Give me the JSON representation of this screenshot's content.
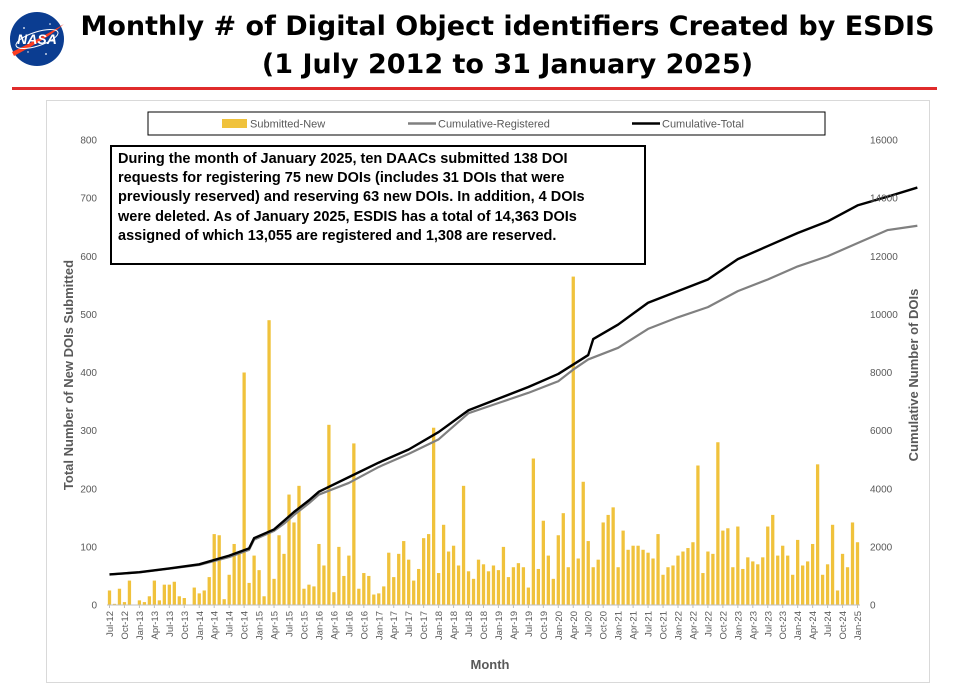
{
  "logo": {
    "text": "NASA",
    "colors": {
      "blue": "#0b3d91",
      "red": "#fc3d21"
    }
  },
  "header": {
    "title_line1": "Monthly # of Digital Object identifiers Created by ESDIS",
    "title_line2": "(1 July 2012 to 31 January 2025)",
    "rule_color": "#e02b2b"
  },
  "chart_data": {
    "type": "bar",
    "xlabel": "Month",
    "ylabel": "Total Number of New DOIs Submitted",
    "y2label": "Cumulative Number of DOIs",
    "ylim": [
      0,
      800
    ],
    "y2lim": [
      0,
      16000
    ],
    "yticks": [
      "0",
      "100",
      "200",
      "300",
      "400",
      "500",
      "600",
      "700",
      "800"
    ],
    "y2ticks": [
      "0",
      "2000",
      "4000",
      "6000",
      "8000",
      "10000",
      "12000",
      "14000",
      "16000"
    ],
    "xtick_labels": [
      "Jul-12",
      "Oct-12",
      "Jan-13",
      "Apr-13",
      "Jul-13",
      "Oct-13",
      "Jan-14",
      "Apr-14",
      "Jul-14",
      "Oct-14",
      "Jan-15",
      "Apr-15",
      "Jul-15",
      "Oct-15",
      "Jan-16",
      "Apr-16",
      "Jul-16",
      "Oct-16",
      "Jan-17",
      "Apr-17",
      "Jul-17",
      "Oct-17",
      "Jan-18",
      "Apr-18",
      "Jul-18",
      "Oct-18",
      "Jan-19",
      "Apr-19",
      "Jul-19",
      "Oct-19",
      "Jan-20",
      "Apr-20",
      "Jul-20",
      "Oct-20",
      "Jan-21",
      "Apr-21",
      "Jul-21",
      "Oct-21",
      "Jan-22",
      "Apr-22",
      "Jul-22",
      "Oct-22",
      "Jan-23",
      "Apr-23",
      "Jul-23",
      "Oct-23",
      "Jan-24",
      "Apr-24",
      "Jul-24",
      "Oct-24",
      "Jan-25"
    ],
    "grid": false,
    "legend_position": "top",
    "series": [
      {
        "name": "Submitted-New",
        "kind": "bar",
        "axis": "left",
        "color": "#f0c23c",
        "values": [
          25,
          2,
          28,
          5,
          42,
          0,
          8,
          5,
          15,
          42,
          8,
          35,
          35,
          40,
          15,
          12,
          0,
          30,
          20,
          25,
          48,
          122,
          120,
          10,
          52,
          105,
          92,
          400,
          38,
          85,
          60,
          15,
          490,
          45,
          120,
          88,
          190,
          142,
          205,
          28,
          35,
          32,
          105,
          68,
          310,
          22,
          100,
          50,
          85,
          278,
          28,
          55,
          50,
          18,
          20,
          32,
          90,
          48,
          88,
          110,
          78,
          42,
          62,
          115,
          122,
          305,
          55,
          138,
          92,
          102,
          68,
          205,
          58,
          45,
          78,
          70,
          58,
          68,
          60,
          100,
          48,
          65,
          72,
          65,
          30,
          252,
          62,
          145,
          85,
          45,
          120,
          158,
          65,
          565,
          80,
          212,
          110,
          65,
          78,
          142,
          155,
          168,
          65,
          128,
          95,
          102,
          102,
          95,
          90,
          80,
          122,
          52,
          65,
          68,
          85,
          92,
          98,
          108,
          240,
          55,
          92,
          88,
          280,
          128,
          132,
          65,
          135,
          62,
          82,
          75,
          70,
          82,
          135,
          155,
          85,
          102,
          85,
          52,
          112,
          68,
          75,
          105,
          242,
          52,
          70,
          138,
          25,
          88,
          65,
          142,
          108
        ]
      },
      {
        "name": "Cumulative-Registered",
        "kind": "line",
        "axis": "right",
        "color": "#808080",
        "points": [
          [
            0,
            1050
          ],
          [
            6,
            1120
          ],
          [
            12,
            1250
          ],
          [
            18,
            1380
          ],
          [
            24,
            1650
          ],
          [
            28,
            1900
          ],
          [
            29,
            2250
          ],
          [
            33,
            2550
          ],
          [
            35,
            2800
          ],
          [
            37,
            3100
          ],
          [
            40,
            3500
          ],
          [
            42,
            3800
          ],
          [
            48,
            4200
          ],
          [
            54,
            4750
          ],
          [
            60,
            5200
          ],
          [
            66,
            5700
          ],
          [
            72,
            6600
          ],
          [
            78,
            6950
          ],
          [
            84,
            7300
          ],
          [
            90,
            7700
          ],
          [
            93,
            8100
          ],
          [
            96,
            8450
          ],
          [
            102,
            8850
          ],
          [
            108,
            9500
          ],
          [
            114,
            9900
          ],
          [
            120,
            10250
          ],
          [
            126,
            10800
          ],
          [
            132,
            11200
          ],
          [
            138,
            11650
          ],
          [
            144,
            12000
          ],
          [
            150,
            12450
          ],
          [
            156,
            12900
          ],
          [
            162,
            13050
          ]
        ]
      },
      {
        "name": "Cumulative-Total",
        "kind": "line",
        "axis": "right",
        "color": "#000000",
        "points": [
          [
            0,
            1050
          ],
          [
            6,
            1130
          ],
          [
            12,
            1260
          ],
          [
            18,
            1400
          ],
          [
            24,
            1700
          ],
          [
            28,
            1950
          ],
          [
            29,
            2300
          ],
          [
            33,
            2600
          ],
          [
            35,
            2900
          ],
          [
            37,
            3200
          ],
          [
            40,
            3600
          ],
          [
            42,
            3900
          ],
          [
            48,
            4400
          ],
          [
            54,
            4900
          ],
          [
            60,
            5350
          ],
          [
            66,
            5950
          ],
          [
            72,
            6700
          ],
          [
            78,
            7100
          ],
          [
            84,
            7500
          ],
          [
            90,
            7950
          ],
          [
            96,
            8600
          ],
          [
            97,
            9150
          ],
          [
            102,
            9650
          ],
          [
            108,
            10400
          ],
          [
            114,
            10800
          ],
          [
            120,
            11200
          ],
          [
            126,
            11900
          ],
          [
            132,
            12350
          ],
          [
            138,
            12800
          ],
          [
            144,
            13200
          ],
          [
            150,
            13750
          ],
          [
            156,
            14050
          ],
          [
            162,
            14363
          ]
        ]
      }
    ]
  },
  "annotation": {
    "lines": [
      "During the month of January 2025, ten DAACs submitted 138 DOI",
      "requests for registering 75 new DOIs (includes 31 DOIs that were",
      "previously reserved) and reserving 63 new DOIs. In addition, 4 DOIs",
      "were deleted. As of January 2025, ESDIS has a total of 14,363 DOIs",
      "assigned of which 13,055 are registered and 1,308 are reserved."
    ]
  }
}
